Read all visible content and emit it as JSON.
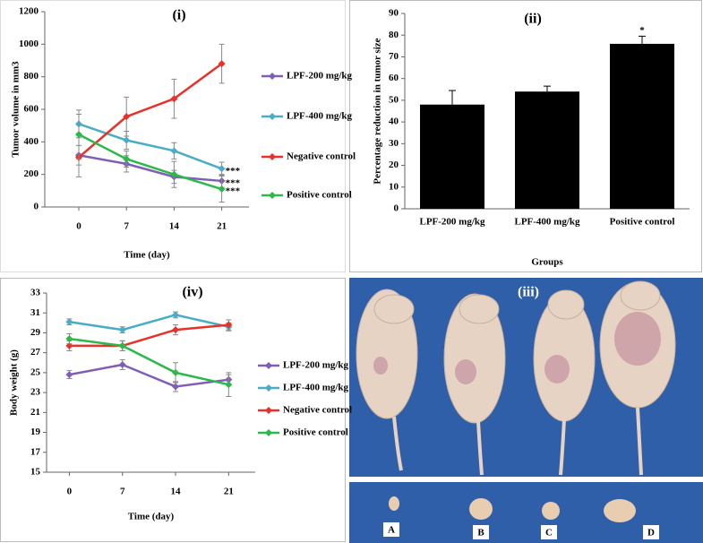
{
  "chart_data": [
    {
      "type": "line",
      "title": "(i)",
      "y_label": "Tumor volume in mm3",
      "x_label": "Time (day)",
      "x": [
        0,
        7,
        14,
        21
      ],
      "xlim": [
        -5,
        25
      ],
      "xticks": [
        0,
        7,
        14,
        21
      ],
      "ylim": [
        0,
        1200
      ],
      "yticks": [
        0,
        200,
        400,
        600,
        800,
        1000,
        1200
      ],
      "series": [
        {
          "name": "LPF-200 mg/kg",
          "color": "#7f5fb5",
          "values": [
            318,
            265,
            185,
            160
          ],
          "errors": [
            60,
            50,
            40,
            40
          ]
        },
        {
          "name": "LPF-400 mg/kg",
          "color": "#4bacc6",
          "values": [
            510,
            410,
            345,
            235
          ],
          "errors": [
            60,
            55,
            50,
            40
          ]
        },
        {
          "name": "Negative control",
          "color": "#e8312a",
          "values": [
            305,
            555,
            665,
            880
          ],
          "errors": [
            120,
            120,
            120,
            120
          ]
        },
        {
          "name": "Positive control",
          "color": "#2db84b",
          "values": [
            445,
            295,
            200,
            110
          ],
          "errors": [
            150,
            50,
            80,
            80
          ]
        }
      ],
      "annotations": [
        "***",
        "***",
        "***"
      ]
    },
    {
      "type": "bar",
      "title": "(ii)",
      "y_label": "Percentage reduction in tumor size",
      "x_label": "Groups",
      "categories": [
        "LPF-200 mg/kg",
        "LPF-400 mg/kg",
        "Positive control"
      ],
      "values": [
        48,
        54,
        76
      ],
      "errors": [
        6.5,
        2.5,
        3.5
      ],
      "color": "#000000",
      "ylim": [
        0,
        90
      ],
      "yticks": [
        0,
        10,
        20,
        30,
        40,
        50,
        60,
        70,
        80,
        90
      ],
      "annotations": [
        "*"
      ]
    },
    {
      "type": "line",
      "title": "(iv)",
      "y_label": "Body weight (g)",
      "x_label": "Time (day)",
      "x": [
        0,
        7,
        14,
        21
      ],
      "xlim": [
        -3,
        24.5
      ],
      "xticks": [
        0,
        7,
        14,
        21
      ],
      "ylim": [
        15,
        33
      ],
      "yticks": [
        15,
        17,
        19,
        21,
        23,
        25,
        27,
        29,
        31,
        33
      ],
      "series": [
        {
          "name": "LPF-200 mg/kg",
          "color": "#7f5fb5",
          "values": [
            24.8,
            25.8,
            23.6,
            24.3
          ],
          "errors": [
            0.4,
            0.5,
            0.5,
            0.5
          ]
        },
        {
          "name": "LPF-400 mg/kg",
          "color": "#4bacc6",
          "values": [
            30.1,
            29.3,
            30.8,
            29.6
          ],
          "errors": [
            0.3,
            0.3,
            0.3,
            0.4
          ]
        },
        {
          "name": "Negative control",
          "color": "#e8312a",
          "values": [
            27.7,
            27.7,
            29.3,
            29.8
          ],
          "errors": [
            0.5,
            0.5,
            0.5,
            0.5
          ]
        },
        {
          "name": "Positive control",
          "color": "#2db84b",
          "values": [
            28.4,
            27.7,
            25.0,
            23.8
          ],
          "errors": [
            0.5,
            0.5,
            1.0,
            1.2
          ]
        }
      ]
    }
  ],
  "photo": {
    "label": "(iii)",
    "tumor_labels": [
      "A",
      "B",
      "C",
      "D"
    ]
  }
}
